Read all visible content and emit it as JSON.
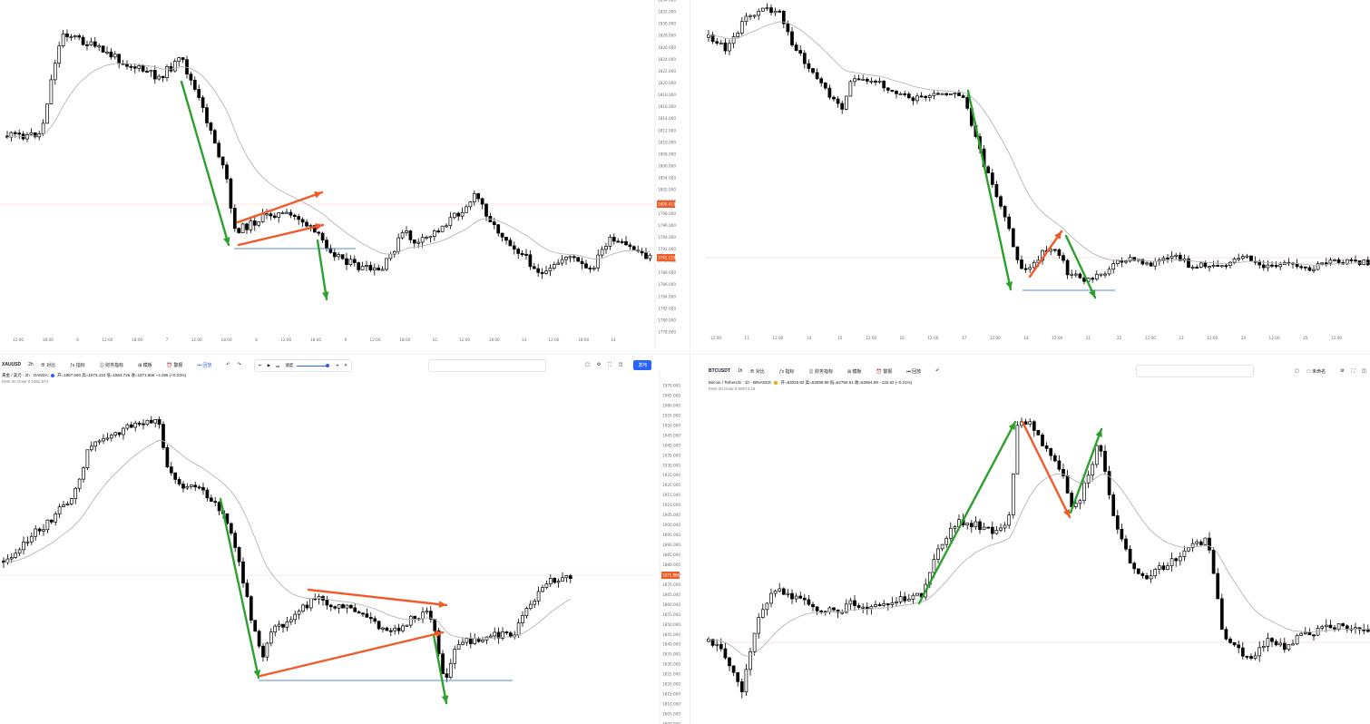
{
  "colors": {
    "candle_up": "#ffffff",
    "candle_down": "#000000",
    "ema_line": "#b2b5be",
    "arrow_green": "#2ca02c",
    "arrow_red": "#f05a28",
    "support_line": "#5b8bd9",
    "price_line": "#f7c9bd",
    "price_label_bg": "#f05a28",
    "publish_bg": "#2962ff"
  },
  "charts": [
    {
      "id": "top-left",
      "y_axis": [
        "1834.000",
        "1832.000",
        "1830.000",
        "1828.000",
        "1826.000",
        "1824.000",
        "1822.000",
        "1820.000",
        "1818.000",
        "1816.000",
        "1814.000",
        "1812.000",
        "1810.000",
        "1808.000",
        "1806.000",
        "1804.000",
        "1802.000",
        "1800.000",
        "1798.000",
        "1796.000",
        "1794.000",
        "1792.000",
        "1790.000",
        "1788.000",
        "1786.000",
        "1784.000",
        "1782.000",
        "1780.000",
        "1778.000"
      ],
      "x_axis": [
        "12:00",
        "18:00",
        "6",
        "12:00",
        "18:00",
        "7",
        "12:00",
        "18:00",
        "8",
        "12:00",
        "18:00",
        "9",
        "12:00",
        "18:00",
        "10",
        "12:00",
        "18:00",
        "13",
        "12:00",
        "18:00",
        "14"
      ],
      "price_labels": [
        "1800.413",
        "1791.133"
      ]
    },
    {
      "id": "top-right",
      "y_axis": [],
      "x_axis": [
        "12:00",
        "11",
        "12:00",
        "14",
        "15",
        "12:00",
        "16",
        "12:00",
        "17",
        "12:00",
        "18",
        "12:00",
        "21",
        "22",
        "12:00",
        "23",
        "12:00",
        "24",
        "12:00",
        "25",
        "12:00"
      ],
      "price_labels": []
    },
    {
      "id": "bottom-left",
      "toolbar": {
        "symbol": "XAUUSD",
        "interval": "2h",
        "compare": "对比",
        "indicators": "指标",
        "fin_indicators": "财务指标",
        "templates": "模板",
        "alert": "警报",
        "replay": "回放",
        "publish": "发布",
        "speed": "速度"
      },
      "legend": {
        "title": "黄金 / 美元 · 2h · OANDA",
        "ohlc": "开=1867.590 高=1873.410 低=1864.726 收=1871.866 +4.296 (+0.23%)",
        "ema": "EMA 20 close 0  1862.874"
      },
      "y_axis": [
        "1970.000",
        "1965.000",
        "1960.000",
        "1955.000",
        "1950.000",
        "1945.000",
        "1940.000",
        "1935.000",
        "1930.000",
        "1925.000",
        "1920.000",
        "1915.000",
        "1910.000",
        "1905.000",
        "1900.000",
        "1895.000",
        "1890.000",
        "1885.000",
        "1880.000",
        "1875.000",
        "1870.000",
        "1865.000",
        "1860.000",
        "1855.000",
        "1850.000",
        "1845.000",
        "1840.000",
        "1835.000",
        "1830.000",
        "1825.000",
        "1820.000",
        "1815.000",
        "1810.000",
        "1805.000",
        "1800.000"
      ],
      "price_labels": [
        "1871.866"
      ]
    },
    {
      "id": "bottom-right",
      "toolbar": {
        "symbol": "BTCUSDT",
        "interval": "1h",
        "compare": "对比",
        "indicators": "指标",
        "fin_indicators": "财务指标",
        "templates": "模板",
        "alert": "警报",
        "replay": "回放",
        "unsaved": "未命名"
      },
      "legend": {
        "title": "Bitcoin / TetherUS · 1h · BINANCE",
        "ohlc": "开=63025.82 高=63098.99 低=62750.91 收=62894.99 −132.82 (−0.21%)",
        "ema": "EMA 20 close 0  59674.18"
      },
      "price_labels": []
    }
  ]
}
